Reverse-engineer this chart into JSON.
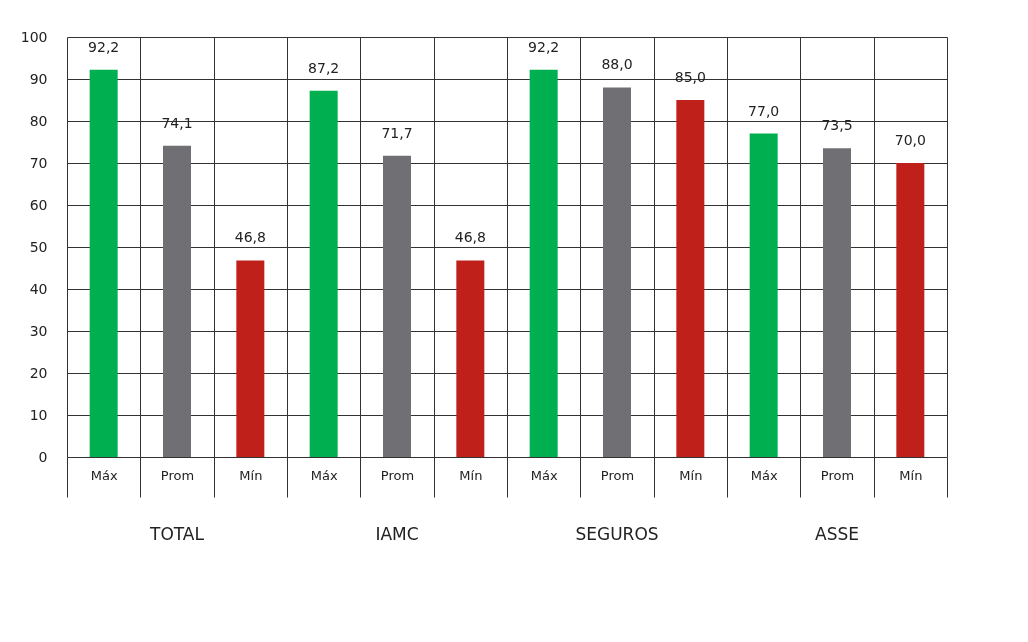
{
  "chart_data": {
    "type": "bar",
    "categories": [
      "Máx",
      "Prom",
      "Mín",
      "Máx",
      "Prom",
      "Mín",
      "Máx",
      "Prom",
      "Mín",
      "Máx",
      "Prom",
      "Mín"
    ],
    "values": [
      92.2,
      74.1,
      46.8,
      87.2,
      71.7,
      46.8,
      92.2,
      88.0,
      85.0,
      77.0,
      73.5,
      70.0
    ],
    "value_labels": [
      "92,2",
      "74,1",
      "46,8",
      "87,2",
      "71,7",
      "46,8",
      "92,2",
      "88,0",
      "85,0",
      "77,0",
      "73,5",
      "70,0"
    ],
    "colors": [
      "#00b050",
      "#706f74",
      "#c0201a",
      "#00b050",
      "#706f74",
      "#c0201a",
      "#00b050",
      "#706f74",
      "#c0201a",
      "#00b050",
      "#706f74",
      "#c0201a"
    ],
    "annotations": [
      "TOTAL",
      "IAMC",
      "SEGUROS",
      "ASSE"
    ],
    "ylim": [
      0,
      100
    ],
    "yticks": [
      0,
      10,
      20,
      30,
      40,
      50,
      60,
      70,
      80,
      90,
      100
    ],
    "grid": true
  }
}
